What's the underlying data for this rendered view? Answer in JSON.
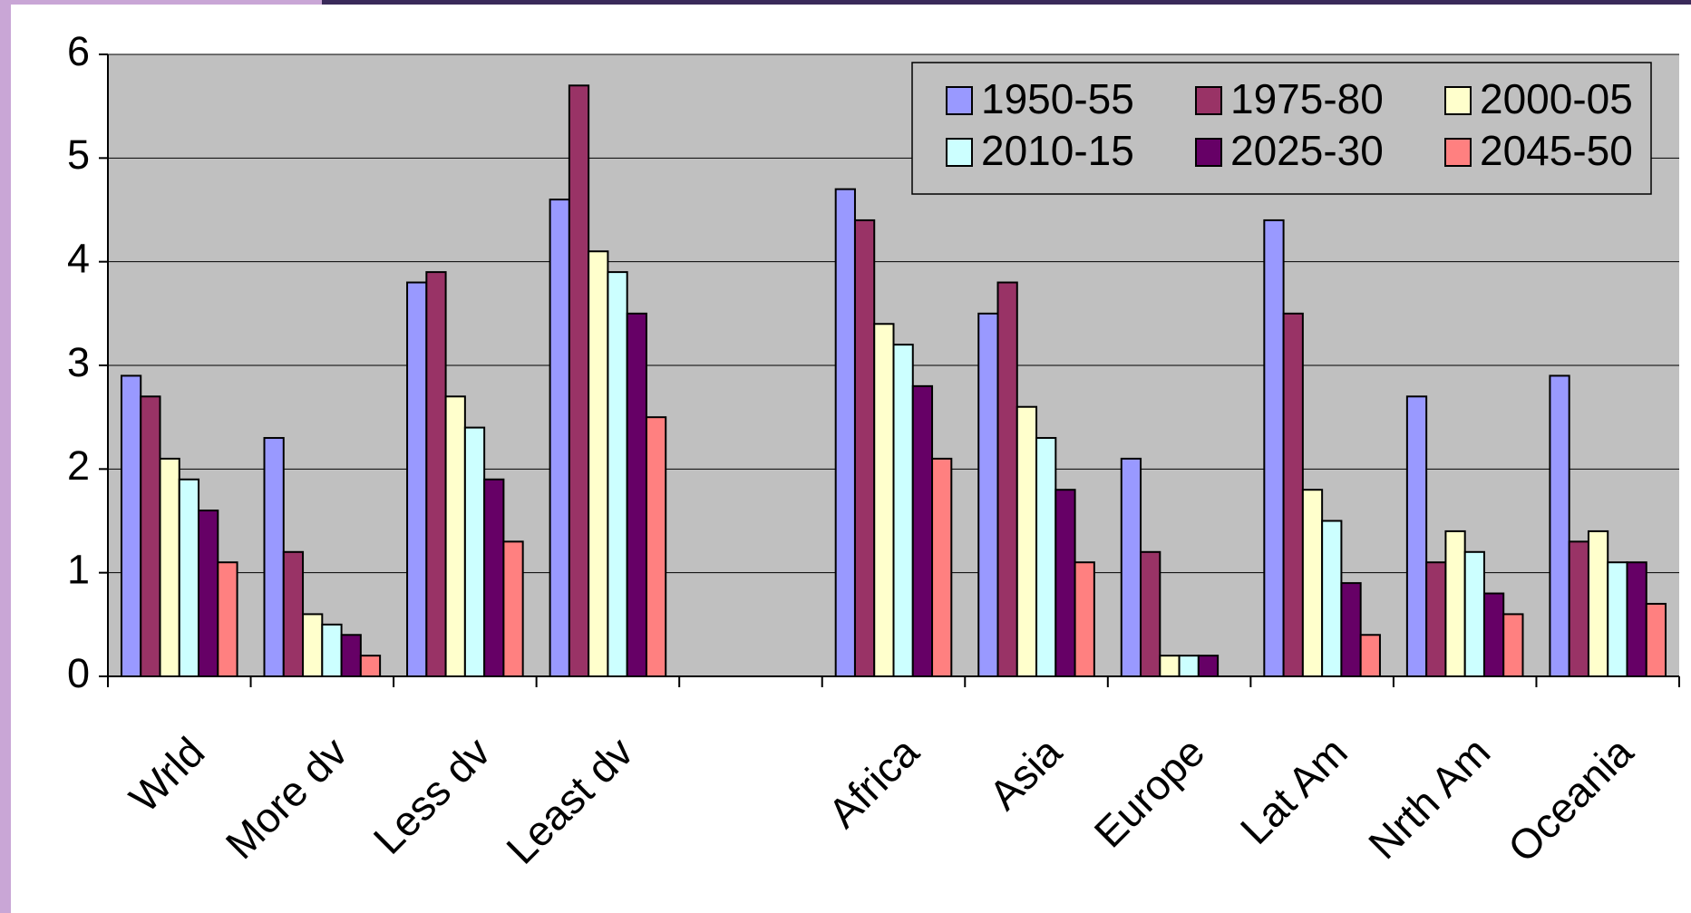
{
  "chart_data": {
    "type": "bar",
    "categories": [
      "Wrld",
      "More dv",
      "Less dv",
      "Least dv",
      null,
      "Africa",
      "Asia",
      "Europe",
      "Lat Am",
      "Nrth Am",
      "Oceania"
    ],
    "series": [
      {
        "name": "1950-55",
        "color": "#9999ff",
        "values": [
          2.9,
          2.3,
          3.8,
          4.6,
          null,
          4.7,
          3.5,
          2.1,
          4.4,
          2.7,
          2.9
        ]
      },
      {
        "name": "1975-80",
        "color": "#993366",
        "values": [
          2.7,
          1.2,
          3.9,
          5.7,
          null,
          4.4,
          3.8,
          1.2,
          3.5,
          1.1,
          1.3
        ]
      },
      {
        "name": "2000-05",
        "color": "#ffffcc",
        "values": [
          2.1,
          0.6,
          2.7,
          4.1,
          null,
          3.4,
          2.6,
          0.2,
          1.8,
          1.4,
          1.4
        ]
      },
      {
        "name": "2010-15",
        "color": "#ccffff",
        "values": [
          1.9,
          0.5,
          2.4,
          3.9,
          null,
          3.2,
          2.3,
          0.2,
          1.5,
          1.2,
          1.1
        ]
      },
      {
        "name": "2025-30",
        "color": "#660066",
        "values": [
          1.6,
          0.4,
          1.9,
          3.5,
          null,
          2.8,
          1.8,
          0.2,
          0.9,
          0.8,
          1.1
        ]
      },
      {
        "name": "2045-50",
        "color": "#ff8080",
        "values": [
          1.1,
          0.2,
          1.3,
          2.5,
          null,
          2.1,
          1.1,
          null,
          0.4,
          0.6,
          0.7
        ]
      }
    ],
    "ylim": [
      0,
      6
    ],
    "yticks": [
      0,
      1,
      2,
      3,
      4,
      5,
      6
    ],
    "grid": true,
    "legend": "top-right"
  }
}
